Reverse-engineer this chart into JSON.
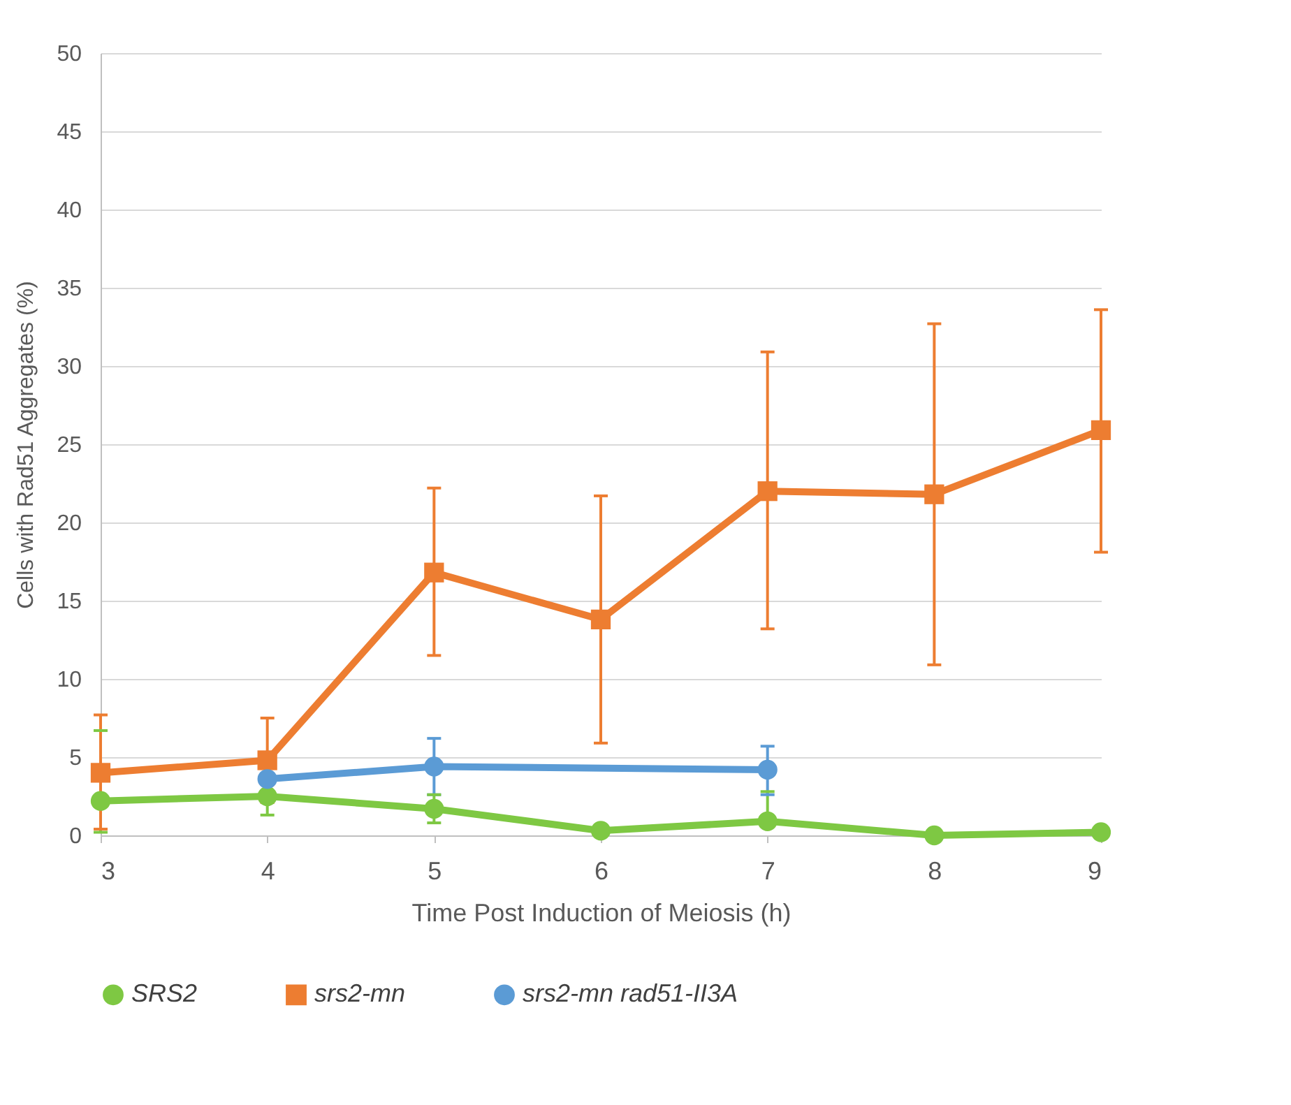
{
  "chart_data": {
    "type": "line",
    "xlabel": "Time Post Induction of Meiosis (h)",
    "ylabel": "Cells with Rad51 Aggregates (%)",
    "x": [
      3,
      4,
      5,
      6,
      7,
      8,
      9
    ],
    "xlim": [
      3,
      9
    ],
    "xticks": [
      3,
      4,
      5,
      6,
      7,
      8,
      9
    ],
    "ylim": [
      0,
      50
    ],
    "yticks": [
      0,
      5,
      10,
      15,
      20,
      25,
      30,
      35,
      40,
      45,
      50
    ],
    "grid": "y",
    "legend": "bottom",
    "line_style": "solid",
    "series": [
      {
        "name": "SRS2",
        "color": "#7ec843",
        "marker": "circle",
        "values": [
          2.2,
          2.5,
          1.7,
          0.3,
          0.9,
          0.0,
          0.2
        ],
        "errors": [
          [
            0.2,
            6.7
          ],
          1.2,
          [
            0.8,
            2.6
          ],
          null,
          [
            0.9,
            2.8
          ],
          null,
          null
        ]
      },
      {
        "name": "srs2-mn",
        "color": "#ed7d31",
        "marker": "square",
        "values": [
          4.0,
          4.8,
          16.8,
          13.8,
          22.0,
          21.8,
          25.9
        ],
        "errors": [
          [
            0.4,
            7.7
          ],
          2.7,
          [
            11.5,
            22.2
          ],
          [
            5.9,
            21.7
          ],
          [
            13.2,
            30.9
          ],
          [
            10.9,
            32.7
          ],
          [
            18.1,
            33.6
          ]
        ]
      },
      {
        "name": "srs2-mn rad51-II3A",
        "color": "#5b9bd5",
        "marker": "circle",
        "x": [
          4,
          5,
          7
        ],
        "values": [
          3.6,
          4.4,
          4.2
        ],
        "errors": [
          null,
          [
            2.6,
            6.2
          ],
          [
            2.6,
            5.7
          ]
        ]
      }
    ]
  }
}
